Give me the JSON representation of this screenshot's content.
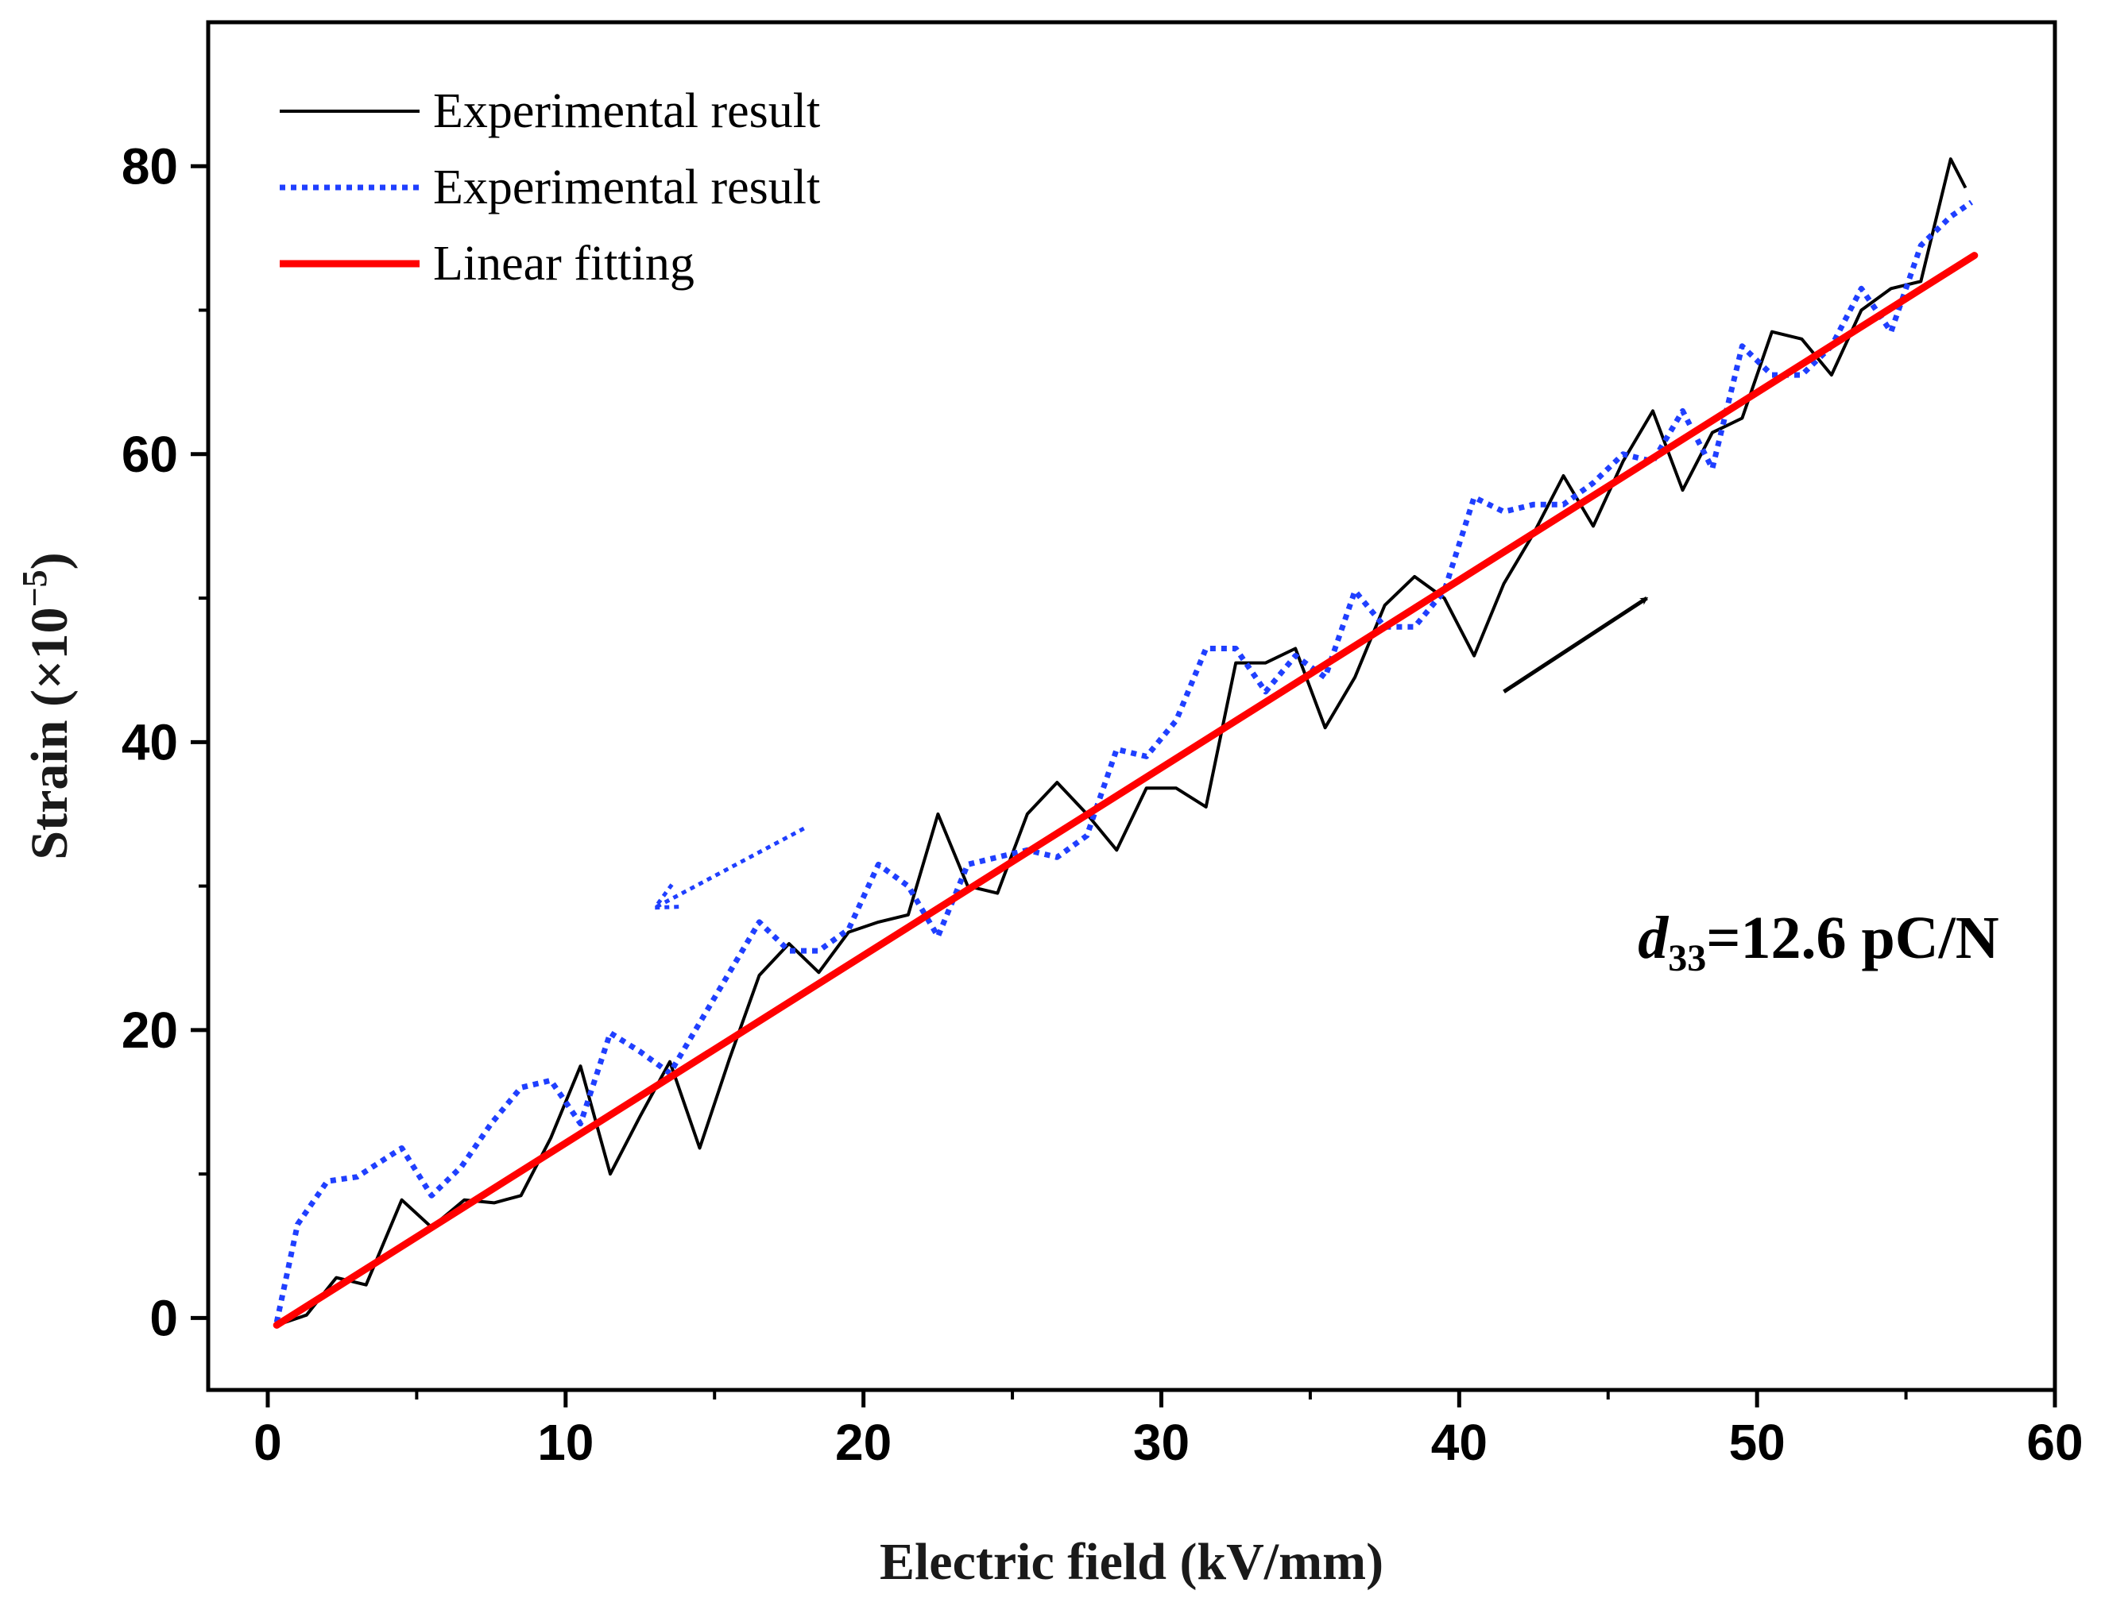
{
  "chart_data": {
    "type": "line",
    "title": "",
    "xlabel": "Electric field  (kV/mm)",
    "ylabel": "Strain (×10",
    "ylabel_exponent": "−5",
    "ylabel_close": ")",
    "xlim": [
      -2,
      60
    ],
    "ylim": [
      -5,
      90
    ],
    "xticks": [
      0,
      10,
      20,
      30,
      40,
      50,
      60
    ],
    "yticks": [
      0,
      20,
      40,
      60,
      80
    ],
    "xtick_labels": [
      "0",
      "10",
      "20",
      "30",
      "40",
      "50",
      "60"
    ],
    "ytick_labels": [
      "0",
      "20",
      "40",
      "60",
      "80"
    ],
    "legend_position": "top-left",
    "series": [
      {
        "name": "Experimental result",
        "style": "solid",
        "color": "#000000",
        "points": [
          [
            0.3,
            -0.5
          ],
          [
            1.3,
            0.2
          ],
          [
            2.3,
            2.8
          ],
          [
            3.3,
            2.3
          ],
          [
            4.5,
            8.2
          ],
          [
            5.5,
            6.3
          ],
          [
            6.6,
            8.2
          ],
          [
            7.6,
            8.0
          ],
          [
            8.5,
            8.5
          ],
          [
            9.5,
            12.5
          ],
          [
            10.5,
            17.5
          ],
          [
            11.5,
            10.0
          ],
          [
            12.5,
            14.0
          ],
          [
            13.5,
            17.8
          ],
          [
            14.5,
            11.8
          ],
          [
            15.5,
            18.0
          ],
          [
            16.5,
            23.8
          ],
          [
            17.5,
            26.0
          ],
          [
            18.5,
            24.0
          ],
          [
            19.5,
            26.8
          ],
          [
            20.5,
            27.5
          ],
          [
            21.5,
            28.0
          ],
          [
            22.5,
            35.0
          ],
          [
            23.5,
            30.0
          ],
          [
            24.5,
            29.5
          ],
          [
            25.5,
            35.0
          ],
          [
            26.5,
            37.2
          ],
          [
            27.5,
            35.0
          ],
          [
            28.5,
            32.5
          ],
          [
            29.5,
            36.8
          ],
          [
            30.5,
            36.8
          ],
          [
            31.5,
            35.5
          ],
          [
            32.5,
            45.5
          ],
          [
            33.5,
            45.5
          ],
          [
            34.5,
            46.5
          ],
          [
            35.5,
            41.0
          ],
          [
            36.5,
            44.5
          ],
          [
            37.5,
            49.5
          ],
          [
            38.5,
            51.5
          ],
          [
            39.5,
            50.0
          ],
          [
            40.5,
            46.0
          ],
          [
            41.5,
            51.0
          ],
          [
            42.5,
            54.5
          ],
          [
            43.5,
            58.5
          ],
          [
            44.5,
            55.0
          ],
          [
            45.5,
            59.5
          ],
          [
            46.5,
            63.0
          ],
          [
            47.5,
            57.5
          ],
          [
            48.5,
            61.5
          ],
          [
            49.5,
            62.5
          ],
          [
            50.5,
            68.5
          ],
          [
            51.5,
            68.0
          ],
          [
            52.5,
            65.5
          ],
          [
            53.5,
            70.0
          ],
          [
            54.5,
            71.5
          ],
          [
            55.5,
            72.0
          ],
          [
            56.5,
            80.5
          ],
          [
            57.0,
            78.5
          ]
        ]
      },
      {
        "name": "Experimental result",
        "style": "dotted",
        "color": "#1f3fff",
        "points": [
          [
            0.3,
            -0.3
          ],
          [
            1.0,
            6.5
          ],
          [
            2.0,
            9.5
          ],
          [
            3.0,
            9.8
          ],
          [
            4.5,
            11.8
          ],
          [
            5.5,
            8.5
          ],
          [
            6.5,
            10.5
          ],
          [
            7.5,
            13.5
          ],
          [
            8.5,
            16.0
          ],
          [
            9.5,
            16.5
          ],
          [
            10.5,
            13.5
          ],
          [
            11.5,
            19.8
          ],
          [
            12.5,
            18.5
          ],
          [
            13.5,
            17.0
          ],
          [
            14.5,
            20.5
          ],
          [
            15.5,
            24.0
          ],
          [
            16.5,
            27.5
          ],
          [
            17.5,
            25.5
          ],
          [
            18.5,
            25.5
          ],
          [
            19.5,
            27.0
          ],
          [
            20.5,
            31.5
          ],
          [
            21.5,
            30.0
          ],
          [
            22.5,
            26.5
          ],
          [
            23.5,
            31.5
          ],
          [
            24.5,
            32.0
          ],
          [
            25.5,
            32.5
          ],
          [
            26.5,
            32.0
          ],
          [
            27.5,
            33.5
          ],
          [
            28.5,
            39.5
          ],
          [
            29.5,
            39.0
          ],
          [
            30.5,
            41.5
          ],
          [
            31.5,
            46.5
          ],
          [
            32.5,
            46.5
          ],
          [
            33.5,
            43.5
          ],
          [
            34.5,
            46.0
          ],
          [
            35.5,
            44.5
          ],
          [
            36.5,
            50.5
          ],
          [
            37.5,
            48.0
          ],
          [
            38.5,
            48.0
          ],
          [
            39.5,
            50.5
          ],
          [
            40.5,
            57.0
          ],
          [
            41.5,
            56.0
          ],
          [
            42.5,
            56.5
          ],
          [
            43.5,
            56.5
          ],
          [
            44.5,
            58.0
          ],
          [
            45.5,
            60.0
          ],
          [
            46.5,
            59.5
          ],
          [
            47.5,
            63.0
          ],
          [
            48.5,
            59.0
          ],
          [
            49.5,
            67.5
          ],
          [
            50.5,
            65.5
          ],
          [
            51.5,
            65.5
          ],
          [
            52.5,
            67.5
          ],
          [
            53.5,
            71.5
          ],
          [
            54.5,
            68.5
          ],
          [
            55.5,
            74.5
          ],
          [
            56.5,
            76.5
          ],
          [
            57.2,
            77.5
          ]
        ]
      },
      {
        "name": "Linear fitting",
        "style": "solid-thick",
        "color": "#ff0000",
        "points": [
          [
            0.3,
            -0.5
          ],
          [
            57.3,
            73.8
          ]
        ]
      }
    ],
    "annotations": {
      "d33_symbol": "d",
      "d33_subscript": "33",
      "d33_value": "=12.6 pC/N",
      "d33_at": [
        46,
        25
      ],
      "arrow_increase": {
        "from": [
          41.5,
          43.5
        ],
        "to": [
          46.3,
          50.0
        ],
        "color": "#000000"
      },
      "arrow_decrease": {
        "from": [
          18.0,
          34.0
        ],
        "to": [
          13.0,
          28.5
        ],
        "color": "#1f3fff"
      }
    }
  }
}
